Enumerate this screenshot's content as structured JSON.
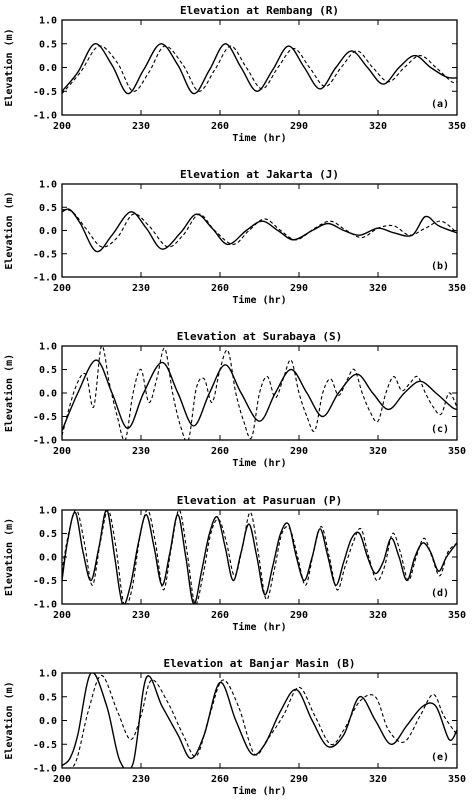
{
  "chart_data": [
    {
      "type": "line",
      "title": "Elevation at Rembang (R)",
      "panel_label": "(a)",
      "xlabel": "Time (hr)",
      "ylabel": "Elevation (m)",
      "xlim": [
        200,
        350
      ],
      "ylim": [
        -1.0,
        1.0
      ],
      "xticks": [
        "200",
        "230",
        "260",
        "290",
        "320",
        "350"
      ],
      "yticks": [
        "1.0",
        "0.5",
        "0.0",
        "-0.5",
        "-1.0"
      ],
      "grid": false,
      "series": [
        {
          "style": "solid",
          "x": [
            200,
            206,
            212.5,
            219,
            225,
            231,
            237.5,
            244,
            250,
            256,
            262,
            268,
            274,
            280,
            286,
            292,
            298,
            304,
            310,
            316,
            322,
            328,
            334,
            340,
            346,
            350
          ],
          "y": [
            -0.5,
            -0.1,
            0.5,
            0.05,
            -0.55,
            -0.05,
            0.5,
            0.05,
            -0.55,
            -0.05,
            0.5,
            0.0,
            -0.5,
            -0.05,
            0.45,
            0.0,
            -0.45,
            0.0,
            0.35,
            0.0,
            -0.35,
            0.0,
            0.25,
            0.0,
            -0.2,
            -0.22
          ]
        },
        {
          "style": "dashed",
          "x": [
            200,
            207,
            214,
            221,
            227,
            233,
            239,
            246,
            252,
            258,
            264,
            270,
            276,
            282,
            288,
            294,
            300,
            306,
            312,
            318,
            324,
            330,
            336,
            342,
            348,
            350
          ],
          "y": [
            -0.55,
            -0.1,
            0.45,
            0.1,
            -0.5,
            -0.1,
            0.45,
            0.05,
            -0.5,
            -0.05,
            0.45,
            0.0,
            -0.45,
            0.0,
            0.4,
            0.0,
            -0.4,
            0.0,
            0.35,
            0.0,
            -0.3,
            0.0,
            0.25,
            0.0,
            -0.3,
            -0.3
          ]
        }
      ]
    },
    {
      "type": "line",
      "title": "Elevation at Jakarta (J)",
      "panel_label": "(b)",
      "xlabel": "Time (hr)",
      "ylabel": "Elevation (m)",
      "xlim": [
        200,
        350
      ],
      "ylim": [
        -1.0,
        1.0
      ],
      "xticks": [
        "200",
        "230",
        "260",
        "290",
        "320",
        "350"
      ],
      "yticks": [
        "1.0",
        "0.5",
        "0.0",
        "-0.5",
        "-1.0"
      ],
      "grid": false,
      "series": [
        {
          "style": "solid",
          "x": [
            200,
            203,
            207,
            213,
            219,
            226,
            232,
            238,
            245,
            251,
            257,
            263,
            270,
            276,
            282,
            288,
            295,
            301,
            307,
            313,
            320,
            326,
            333,
            338,
            343,
            350
          ],
          "y": [
            0.4,
            0.45,
            0.15,
            -0.45,
            -0.1,
            0.4,
            0.05,
            -0.4,
            -0.05,
            0.35,
            0.05,
            -0.3,
            0.0,
            0.2,
            0.0,
            -0.2,
            0.0,
            0.15,
            0.0,
            -0.1,
            0.05,
            -0.05,
            -0.1,
            0.3,
            0.1,
            -0.05
          ]
        },
        {
          "style": "dashed",
          "x": [
            200,
            204,
            209,
            215,
            221,
            227,
            233,
            240,
            246,
            252,
            258,
            265,
            271,
            277,
            283,
            289,
            296,
            302,
            308,
            314,
            320,
            326,
            332,
            338,
            344,
            350
          ],
          "y": [
            0.45,
            0.4,
            0.05,
            -0.35,
            -0.15,
            0.35,
            0.1,
            -0.35,
            -0.1,
            0.35,
            0.0,
            -0.3,
            0.0,
            0.25,
            0.0,
            -0.2,
            0.05,
            0.2,
            0.0,
            -0.15,
            0.05,
            0.1,
            -0.1,
            0.05,
            0.2,
            -0.05
          ]
        }
      ]
    },
    {
      "type": "line",
      "title": "Elevation at Surabaya (S)",
      "panel_label": "(c)",
      "xlabel": "Time (hr)",
      "ylabel": "Elevation (m)",
      "xlim": [
        200,
        350
      ],
      "ylim": [
        -1.0,
        1.0
      ],
      "xticks": [
        "200",
        "230",
        "260",
        "290",
        "320",
        "350"
      ],
      "yticks": [
        "1.0",
        "0.5",
        "0.0",
        "-0.5",
        "-1.0"
      ],
      "grid": false,
      "series": [
        {
          "style": "solid",
          "x": [
            200,
            206,
            213,
            219,
            225,
            231,
            238,
            244,
            250,
            256,
            262,
            268,
            275,
            281,
            287,
            293,
            299,
            305,
            312,
            318,
            324,
            330,
            336,
            342,
            348,
            350
          ],
          "y": [
            -0.8,
            0.0,
            0.7,
            0.0,
            -0.75,
            0.0,
            0.65,
            0.0,
            -0.7,
            0.0,
            0.6,
            0.0,
            -0.6,
            0.0,
            0.5,
            0.0,
            -0.5,
            0.0,
            0.4,
            0.0,
            -0.35,
            0.0,
            0.25,
            0.0,
            -0.3,
            -0.35
          ]
        },
        {
          "style": "dashed",
          "x": [
            200,
            205,
            209,
            212,
            215,
            218,
            221,
            224,
            227,
            230,
            233,
            236,
            239,
            242,
            245,
            248,
            251,
            254,
            257,
            260,
            263,
            266,
            269,
            272,
            275,
            278,
            281,
            284,
            287,
            290,
            293,
            296,
            299,
            302,
            305,
            308,
            311,
            314,
            317,
            320,
            323,
            326,
            329,
            332,
            335,
            338,
            341,
            344,
            347,
            350
          ],
          "y": [
            -0.9,
            0.1,
            0.4,
            -0.3,
            1.0,
            0.2,
            -0.5,
            -1.0,
            0.0,
            0.5,
            -0.2,
            0.3,
            0.95,
            0.0,
            -0.7,
            -1.0,
            0.1,
            0.3,
            -0.2,
            0.5,
            0.9,
            0.0,
            -0.6,
            -0.95,
            0.0,
            0.35,
            -0.1,
            0.3,
            0.7,
            0.0,
            -0.5,
            -0.8,
            0.0,
            0.3,
            -0.05,
            0.25,
            0.5,
            0.0,
            -0.4,
            -0.6,
            0.0,
            0.35,
            0.05,
            0.2,
            0.35,
            0.0,
            -0.3,
            -0.45,
            0.0,
            -0.3
          ]
        }
      ]
    },
    {
      "type": "line",
      "title": "Elevation at Pasuruan (P)",
      "panel_label": "(d)",
      "xlabel": "Time (hr)",
      "ylabel": "Elevation (m)",
      "xlim": [
        200,
        350
      ],
      "ylim": [
        -1.0,
        1.0
      ],
      "xticks": [
        "200",
        "230",
        "260",
        "290",
        "320",
        "350"
      ],
      "yticks": [
        "1.0",
        "0.5",
        "0.0",
        "-0.5",
        "-1.0"
      ],
      "grid": false,
      "series": [
        {
          "style": "solid",
          "x": [
            200,
            202,
            205,
            208,
            211,
            214,
            217,
            220,
            223,
            226,
            229,
            232,
            235,
            238,
            241,
            244,
            247,
            250,
            253,
            256,
            259,
            262,
            265,
            268,
            271,
            274,
            277,
            280,
            283,
            286,
            289,
            292,
            295,
            298,
            301,
            304,
            307,
            310,
            313,
            316,
            319,
            322,
            325,
            328,
            331,
            334,
            337,
            340,
            343,
            346,
            350
          ],
          "y": [
            -0.5,
            0.3,
            0.95,
            0.1,
            -0.5,
            0.2,
            1.0,
            0.0,
            -1.0,
            -0.6,
            0.3,
            0.9,
            0.2,
            -0.6,
            0.1,
            0.9,
            0.0,
            -1.0,
            -0.3,
            0.5,
            0.85,
            0.2,
            -0.5,
            0.1,
            0.7,
            0.0,
            -0.8,
            -0.2,
            0.5,
            0.7,
            0.0,
            -0.5,
            0.0,
            0.6,
            0.0,
            -0.6,
            -0.1,
            0.4,
            0.5,
            0.0,
            -0.35,
            -0.1,
            0.4,
            0.0,
            -0.5,
            0.0,
            0.3,
            0.1,
            -0.3,
            0.0,
            0.3
          ]
        },
        {
          "style": "dashed",
          "x": [
            200,
            202.5,
            205.5,
            208.5,
            211.5,
            214.5,
            217.5,
            220.5,
            223.5,
            226.5,
            229.5,
            232.5,
            235.5,
            238.5,
            241.5,
            244.5,
            247.5,
            250.5,
            253.5,
            256.5,
            259.5,
            262.5,
            265.5,
            268.5,
            271.5,
            274.5,
            277.5,
            280.5,
            283.5,
            286.5,
            289.5,
            292.5,
            295.5,
            298.5,
            301.5,
            304.5,
            307.5,
            310.5,
            313.5,
            316.5,
            319.5,
            322.5,
            325.5,
            328.5,
            331.5,
            334.5,
            337.5,
            340.5,
            343.5,
            346.5,
            350
          ],
          "y": [
            -0.3,
            0.5,
            1.0,
            0.3,
            -0.6,
            0.3,
            1.0,
            0.2,
            -1.0,
            -0.7,
            0.4,
            1.0,
            0.3,
            -0.7,
            0.2,
            1.0,
            0.1,
            -1.0,
            -0.4,
            0.5,
            0.8,
            0.3,
            -0.4,
            0.2,
            0.95,
            0.1,
            -0.9,
            -0.3,
            0.5,
            0.6,
            0.0,
            -0.6,
            0.1,
            0.65,
            0.0,
            -0.7,
            -0.2,
            0.3,
            0.6,
            0.0,
            -0.5,
            -0.2,
            0.5,
            0.1,
            -0.5,
            0.0,
            0.4,
            0.0,
            -0.4,
            0.1,
            0.3
          ]
        }
      ]
    },
    {
      "type": "line",
      "title": "Elevation at Banjar Masin (B)",
      "panel_label": "(e)",
      "xlabel": "Time (hr)",
      "ylabel": "Elevation (m)",
      "xlim": [
        200,
        350
      ],
      "ylim": [
        -1.0,
        1.0
      ],
      "xticks": [
        "200",
        "230",
        "260",
        "290",
        "320",
        "350"
      ],
      "yticks": [
        "1.0",
        "0.5",
        "0.0",
        "-0.5",
        "-1.0"
      ],
      "grid": false,
      "series": [
        {
          "style": "solid",
          "x": [
            200,
            203,
            206,
            211,
            217,
            222,
            227,
            232,
            238,
            244,
            249,
            254,
            260,
            266,
            272,
            277,
            283,
            289,
            295,
            301,
            307,
            313,
            319,
            325,
            331,
            337,
            342,
            347,
            350
          ],
          "y": [
            -0.95,
            -0.8,
            -0.3,
            1.0,
            0.3,
            -0.85,
            -0.9,
            0.9,
            0.3,
            -0.3,
            -0.8,
            -0.3,
            0.8,
            0.0,
            -0.7,
            -0.5,
            0.2,
            0.65,
            0.0,
            -0.55,
            -0.3,
            0.5,
            0.0,
            -0.5,
            -0.1,
            0.3,
            0.3,
            -0.4,
            -0.2
          ]
        },
        {
          "style": "dashed",
          "x": [
            200,
            205,
            210,
            215,
            221,
            226,
            230,
            234,
            240,
            246,
            251,
            256,
            261,
            267,
            273,
            278,
            284,
            290,
            296,
            302,
            307,
            313,
            319,
            324,
            330,
            336,
            341,
            345,
            350
          ],
          "y": [
            -1.0,
            -0.9,
            0.2,
            0.95,
            0.2,
            -0.4,
            0.1,
            0.85,
            0.4,
            -0.3,
            -0.75,
            0.1,
            0.85,
            0.3,
            -0.7,
            -0.4,
            0.1,
            0.7,
            0.1,
            -0.5,
            -0.2,
            0.4,
            0.5,
            -0.2,
            -0.45,
            0.1,
            0.55,
            0.1,
            -0.3
          ]
        }
      ]
    }
  ]
}
